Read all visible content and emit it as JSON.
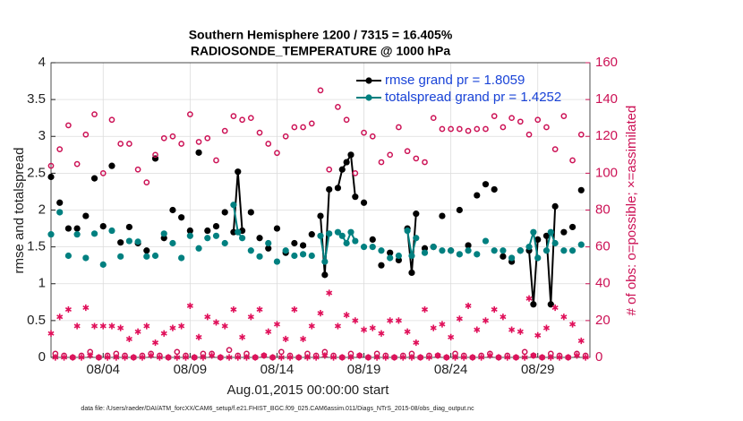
{
  "chart_data": {
    "type": "line",
    "title": "Southern Hemisphere 1200 / 7315 = 16.405%",
    "subtitle": "RADIOSONDE_TEMPERATURE @ 1000 hPa",
    "xlabel": "Aug.01,2015 00:00:00 start",
    "ylabel": "rmse and totalspread",
    "y2label": "# of obs: o=possible; ×=assimilated",
    "footnote": "data file: /Users/raeder/DAI/ATM_forcXX/CAM6_setup/f.e21.FHIST_BGC.f09_025.CAM6assim.011/Diags_NTrS_2015-08/obs_diag_output.nc",
    "grid": true,
    "legend": "northeast",
    "xlim": [
      1,
      32
    ],
    "ylim": [
      0,
      4
    ],
    "y2lim": [
      0,
      160
    ],
    "xticks": [
      {
        "value": 4,
        "label": "08/04"
      },
      {
        "value": 9,
        "label": "08/09"
      },
      {
        "value": 14,
        "label": "08/14"
      },
      {
        "value": 19,
        "label": "08/19"
      },
      {
        "value": 24,
        "label": "08/24"
      },
      {
        "value": 29,
        "label": "08/29"
      }
    ],
    "yticks": [
      0,
      0.5,
      1,
      1.5,
      2,
      2.5,
      3,
      3.5,
      4
    ],
    "y2ticks": [
      0,
      20,
      40,
      60,
      80,
      100,
      120,
      140,
      160
    ],
    "x": [
      1,
      1.25,
      1.5,
      1.75,
      2,
      2.25,
      2.5,
      2.75,
      3,
      3.25,
      3.5,
      3.75,
      4,
      4.25,
      4.5,
      4.75,
      5,
      5.25,
      5.5,
      5.75,
      6,
      6.25,
      6.5,
      6.75,
      7,
      7.25,
      7.5,
      7.75,
      8,
      8.25,
      8.5,
      8.75,
      9,
      9.25,
      9.5,
      9.75,
      10,
      10.25,
      10.5,
      10.75,
      11,
      11.25,
      11.5,
      11.75,
      12,
      12.25,
      12.5,
      12.75,
      13,
      13.25,
      13.5,
      13.75,
      14,
      14.25,
      14.5,
      14.75,
      15,
      15.25,
      15.5,
      15.75,
      16,
      16.25,
      16.5,
      16.75,
      17,
      17.25,
      17.5,
      17.75,
      18,
      18.25,
      18.5,
      18.75,
      19,
      19.25,
      19.5,
      19.75,
      20,
      20.25,
      20.5,
      20.75,
      21,
      21.25,
      21.5,
      21.75,
      22,
      22.25,
      22.5,
      22.75,
      23,
      23.25,
      23.5,
      23.75,
      24,
      24.25,
      24.5,
      24.75,
      25,
      25.25,
      25.5,
      25.75,
      26,
      26.25,
      26.5,
      26.75,
      27,
      27.25,
      27.5,
      27.75,
      28,
      28.25,
      28.5,
      28.75,
      29,
      29.25,
      29.5,
      29.75,
      30,
      30.25,
      30.5,
      30.75,
      31,
      31.25,
      31.5,
      31.75
    ],
    "series": [
      {
        "name": "rmse grand pr = 1.8059",
        "color": "#000000",
        "marker": "dot",
        "axis": "y",
        "values": [
          2.45,
          null,
          2.1,
          null,
          1.75,
          null,
          1.75,
          null,
          1.92,
          null,
          2.43,
          null,
          1.78,
          null,
          2.6,
          null,
          1.56,
          null,
          1.77,
          null,
          1.55,
          null,
          1.45,
          null,
          2.7,
          null,
          1.62,
          null,
          2.0,
          null,
          1.9,
          null,
          1.72,
          null,
          2.78,
          null,
          1.72,
          null,
          1.78,
          null,
          1.97,
          null,
          1.7,
          2.52,
          1.72,
          null,
          1.97,
          null,
          1.62,
          null,
          1.48,
          null,
          1.75,
          null,
          1.42,
          null,
          1.55,
          null,
          1.52,
          null,
          1.67,
          null,
          1.92,
          1.12,
          2.28,
          null,
          2.3,
          2.55,
          2.65,
          2.75,
          2.18,
          null,
          2.1,
          null,
          1.6,
          null,
          1.25,
          null,
          1.42,
          null,
          1.32,
          null,
          1.75,
          1.15,
          1.95,
          null,
          1.48,
          null,
          1.5,
          null,
          1.92,
          null,
          1.45,
          null,
          2.0,
          null,
          1.52,
          null,
          2.2,
          null,
          2.35,
          null,
          2.28,
          null,
          1.37,
          null,
          1.3,
          null,
          1.45,
          null,
          1.45,
          0.72,
          1.6,
          null,
          1.65,
          0.72,
          2.05,
          null,
          1.7,
          null,
          1.77,
          null,
          2.27,
          null
        ]
      },
      {
        "name": "totalspread grand pr = 1.4252",
        "color": "#008080",
        "marker": "dot",
        "axis": "y",
        "values": [
          1.67,
          null,
          1.97,
          null,
          1.38,
          null,
          1.67,
          null,
          1.35,
          null,
          1.68,
          null,
          1.26,
          null,
          1.72,
          null,
          1.37,
          null,
          1.58,
          null,
          1.57,
          null,
          1.37,
          null,
          1.38,
          null,
          1.68,
          null,
          1.55,
          null,
          1.35,
          null,
          1.65,
          null,
          1.48,
          null,
          1.62,
          null,
          1.65,
          null,
          1.55,
          null,
          2.07,
          1.7,
          1.62,
          null,
          1.45,
          null,
          1.37,
          null,
          1.55,
          null,
          1.3,
          null,
          1.45,
          null,
          1.38,
          null,
          1.4,
          null,
          1.38,
          null,
          1.65,
          1.3,
          1.68,
          null,
          1.7,
          1.65,
          1.55,
          1.7,
          1.58,
          null,
          1.5,
          null,
          1.5,
          null,
          1.45,
          null,
          1.35,
          null,
          1.38,
          null,
          1.72,
          1.38,
          1.62,
          null,
          1.42,
          null,
          1.5,
          null,
          1.45,
          null,
          1.45,
          null,
          1.4,
          null,
          1.45,
          null,
          1.4,
          null,
          1.58,
          null,
          1.45,
          null,
          1.45,
          null,
          1.35,
          null,
          1.45,
          null,
          1.5,
          1.7,
          1.35,
          null,
          1.45,
          1.7,
          1.55,
          null,
          1.45,
          null,
          1.45,
          null,
          1.53,
          null
        ]
      },
      {
        "color": "#cc1155",
        "marker": "circle",
        "axis": "y2",
        "values": [
          104,
          2,
          113,
          1,
          126,
          0,
          105,
          1,
          121,
          3,
          132,
          0,
          100,
          1,
          129,
          2,
          116,
          1,
          116,
          0,
          102,
          1,
          95,
          2,
          110,
          1,
          119,
          0,
          120,
          3,
          116,
          1,
          132,
          0,
          117,
          2,
          119,
          2,
          107,
          0,
          123,
          4,
          131,
          1,
          129,
          2,
          130,
          0,
          122,
          1,
          116,
          0,
          111,
          3,
          120,
          1,
          125,
          0,
          125,
          2,
          127,
          1,
          145,
          3,
          102,
          1,
          136,
          0,
          129,
          2,
          100,
          1,
          122,
          0,
          120,
          2,
          106,
          1,
          110,
          0,
          125,
          1,
          112,
          2,
          108,
          0,
          106,
          1,
          130,
          1,
          124,
          0,
          124,
          2,
          124,
          1,
          123,
          0,
          124,
          1,
          124,
          2,
          131,
          0,
          125,
          1,
          130,
          0,
          128,
          3,
          121,
          1,
          129,
          0,
          125,
          2,
          113,
          1,
          131,
          0,
          107,
          2,
          121,
          1
        ]
      },
      {
        "color": "#e0105a",
        "marker": "asterisk",
        "axis": "y2",
        "values": [
          13,
          0,
          22,
          0,
          26,
          0,
          17,
          0,
          27,
          1,
          17,
          0,
          17,
          0,
          17,
          0,
          16,
          0,
          10,
          0,
          14,
          0,
          17,
          1,
          8,
          0,
          13,
          0,
          16,
          0,
          17,
          0,
          28,
          0,
          11,
          0,
          22,
          1,
          19,
          0,
          17,
          0,
          26,
          0,
          11,
          0,
          22,
          0,
          26,
          1,
          14,
          0,
          18,
          0,
          10,
          0,
          26,
          0,
          10,
          0,
          17,
          0,
          24,
          1,
          35,
          0,
          17,
          0,
          23,
          0,
          20,
          1,
          15,
          0,
          16,
          0,
          13,
          0,
          20,
          0,
          20,
          0,
          14,
          0,
          8,
          0,
          26,
          0,
          16,
          1,
          18,
          0,
          11,
          0,
          21,
          0,
          28,
          0,
          15,
          0,
          20,
          1,
          26,
          0,
          22,
          0,
          15,
          0,
          14,
          0,
          32,
          1,
          12,
          0,
          16,
          0,
          27,
          0,
          22,
          0,
          18,
          1,
          9,
          0
        ]
      }
    ]
  }
}
